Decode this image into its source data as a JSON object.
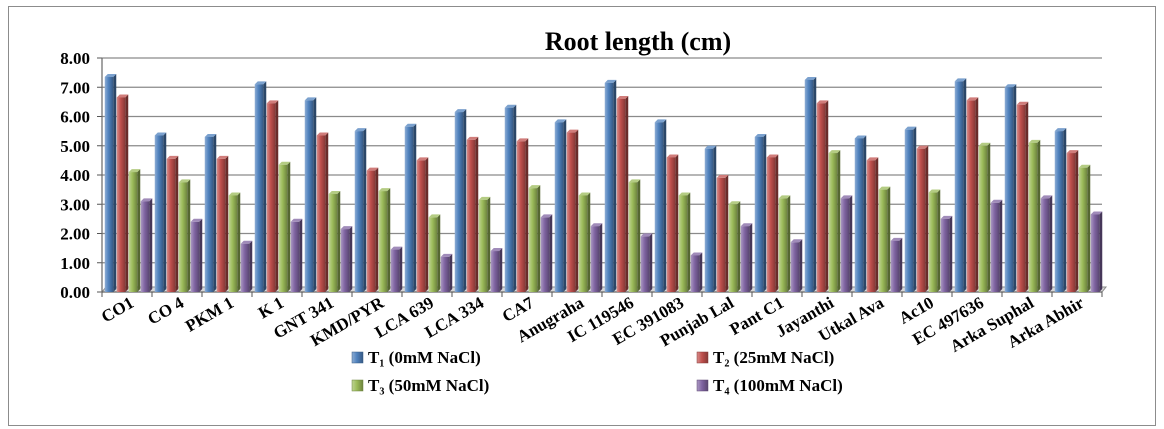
{
  "chart_data": {
    "type": "bar",
    "title": "Root length (cm)",
    "xlabel": "",
    "ylabel": "",
    "ylim": [
      0,
      8
    ],
    "yticks": [
      "0.00",
      "1.00",
      "2.00",
      "3.00",
      "4.00",
      "5.00",
      "6.00",
      "7.00",
      "8.00"
    ],
    "grid": true,
    "legend_position": "bottom",
    "categories": [
      "CO1",
      "CO 4",
      "PKM 1",
      "K 1",
      "GNT 341",
      "KMD/PYR",
      "LCA 639",
      "LCA 334",
      "CA7",
      "Anugraha",
      "IC 119546",
      "EC 391083",
      "Punjab Lal",
      "Pant C1",
      "Jayanthi",
      "Utkal Ava",
      "Ac10",
      "EC 497636",
      "Arka Suphal",
      "Arka Abhir"
    ],
    "series": [
      {
        "name": "T₁ (0mM NaCl)",
        "color": "#4f81bd",
        "values": [
          7.35,
          5.35,
          5.3,
          7.1,
          6.55,
          5.5,
          5.65,
          6.15,
          6.3,
          5.8,
          7.15,
          5.8,
          4.9,
          5.3,
          7.25,
          5.25,
          5.55,
          7.2,
          7.0,
          5.5
        ]
      },
      {
        "name": "T₂ (25mM NaCl)",
        "color": "#c0504d",
        "values": [
          6.65,
          4.55,
          4.55,
          6.45,
          5.35,
          4.15,
          4.5,
          5.2,
          5.15,
          5.45,
          6.6,
          4.6,
          3.9,
          4.6,
          6.45,
          4.5,
          4.9,
          6.55,
          6.4,
          4.75
        ]
      },
      {
        "name": "T₃ (50mM NaCl)",
        "color": "#9bbb59",
        "values": [
          4.1,
          3.75,
          3.3,
          4.35,
          3.35,
          3.45,
          2.55,
          3.15,
          3.55,
          3.3,
          3.75,
          3.3,
          3.0,
          3.2,
          4.75,
          3.5,
          3.4,
          5.0,
          5.1,
          4.25
        ]
      },
      {
        "name": "T₄ (100mM NaCl)",
        "color": "#8064a2",
        "values": [
          3.1,
          2.4,
          1.65,
          2.4,
          2.15,
          1.45,
          1.2,
          1.4,
          2.55,
          2.25,
          1.9,
          1.25,
          2.25,
          1.7,
          3.2,
          1.75,
          2.5,
          3.05,
          3.2,
          2.65
        ]
      }
    ]
  }
}
